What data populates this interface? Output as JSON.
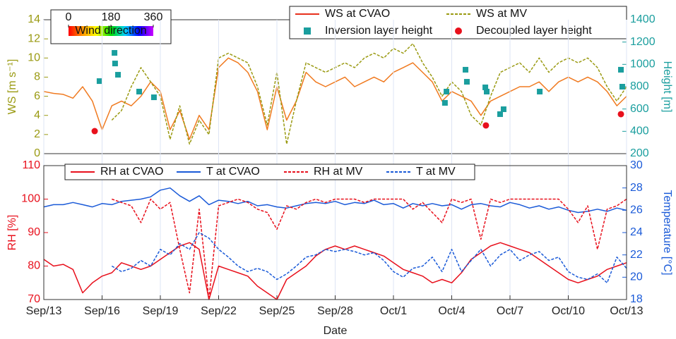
{
  "chart_data": [
    {
      "type": "line",
      "ylabel": "WS [m s⁻¹]",
      "y2label": "Height [m]",
      "ycolor": "#9a9a12",
      "y2color": "#1a9e9e",
      "xlim": [
        0,
        30
      ],
      "ylim": [
        0,
        14
      ],
      "yticks": [
        0,
        2,
        4,
        6,
        8,
        10,
        12,
        14
      ],
      "y2lim": [
        200,
        1400
      ],
      "y2ticks": [
        200,
        400,
        600,
        800,
        1000,
        1200,
        1400
      ],
      "legend": "upper right",
      "colorbar": {
        "label": "Wind direction",
        "lim": [
          0,
          360
        ],
        "ticks": [
          0,
          180,
          360
        ]
      },
      "x": [
        0,
        0.5,
        1,
        1.5,
        2,
        2.5,
        3,
        3.5,
        4,
        4.5,
        5,
        5.5,
        6,
        6.5,
        7,
        7.5,
        8,
        8.5,
        9,
        9.5,
        10,
        10.5,
        11,
        11.5,
        12,
        12.5,
        13,
        13.5,
        14,
        14.5,
        15,
        15.5,
        16,
        16.5,
        17,
        17.5,
        18,
        18.5,
        19,
        19.5,
        20,
        20.5,
        21,
        21.5,
        22,
        22.5,
        23,
        23.5,
        24,
        24.5,
        25,
        25.5,
        26,
        26.5,
        27,
        27.5,
        28,
        28.5,
        29,
        29.5,
        30
      ],
      "series": [
        {
          "name": "WS at CVAO",
          "color": "#e8301c",
          "line_color": "#f07a20",
          "dash": false,
          "values": [
            6.5,
            6.3,
            6.2,
            5.8,
            7.0,
            5.5,
            2.5,
            5.0,
            5.5,
            5.0,
            6.0,
            7.5,
            6.5,
            2.5,
            4.5,
            1.5,
            4.0,
            2.5,
            9.0,
            10.0,
            9.5,
            8.5,
            6.5,
            2.5,
            7.0,
            3.5,
            5.5,
            8.5,
            7.5,
            7.0,
            7.5,
            8.0,
            7.0,
            7.5,
            8.0,
            7.5,
            8.5,
            9.0,
            9.5,
            8.5,
            7.5,
            5.5,
            6.5,
            6.0,
            5.5,
            4.0,
            5.5,
            6.0,
            6.5,
            7.0,
            7.0,
            7.5,
            6.5,
            7.5,
            8.0,
            7.5,
            8.0,
            7.5,
            6.5,
            5.0,
            6.0
          ]
        },
        {
          "name": "WS at MV",
          "color": "#9a9a12",
          "dash": true,
          "values": [
            null,
            null,
            null,
            null,
            null,
            null,
            null,
            3.5,
            4.5,
            7.0,
            9.0,
            7.5,
            6.0,
            1.5,
            5.0,
            1.0,
            3.5,
            2.0,
            10.0,
            10.5,
            10.0,
            9.5,
            7.0,
            3.0,
            8.5,
            1.0,
            5.5,
            9.5,
            9.0,
            8.5,
            9.0,
            9.5,
            9.0,
            10.0,
            10.5,
            10.0,
            11.0,
            10.5,
            11.5,
            9.5,
            8.0,
            6.0,
            7.5,
            6.5,
            4.0,
            3.0,
            6.0,
            8.5,
            9.0,
            9.5,
            8.5,
            10.0,
            8.5,
            9.5,
            10.0,
            9.5,
            10.0,
            9.0,
            7.0,
            5.5,
            7.0
          ]
        },
        {
          "name": "Inversion layer height",
          "type": "scatter",
          "marker": "square",
          "color": "#1a9e9e",
          "axis": "y2",
          "x": [
            2.87,
            3.64,
            3.67,
            3.82,
            4.91,
            5.67,
            20.65,
            20.73,
            21.71,
            21.78,
            22.73,
            22.8,
            23.49,
            23.67,
            25.53,
            29.71,
            29.78
          ],
          "values": [
            850,
            1103,
            1008,
            907,
            756,
            705,
            655,
            756,
            952,
            844,
            794,
            756,
            554,
            598,
            756,
            952,
            800
          ]
        },
        {
          "name": "Decoupled layer height",
          "type": "scatter",
          "marker": "circle",
          "color": "#e8101c",
          "axis": "y2",
          "x": [
            2.62,
            22.76,
            29.71
          ],
          "values": [
            402,
            453,
            554
          ]
        }
      ]
    },
    {
      "type": "line",
      "ylabel": "RH [%]",
      "y2label": "Temperature [°C]",
      "xlabel": "Date",
      "ycolor": "#e8101c",
      "y2color": "#1a5ad8",
      "xlim": [
        0,
        30
      ],
      "xticks": [
        {
          "value": 0,
          "label": "Sep/13"
        },
        {
          "value": 3,
          "label": "Sep/16"
        },
        {
          "value": 6,
          "label": "Sep/19"
        },
        {
          "value": 9,
          "label": "Sep/22"
        },
        {
          "value": 12,
          "label": "Sep/25"
        },
        {
          "value": 15,
          "label": "Sep/28"
        },
        {
          "value": 18,
          "label": "Oct/1"
        },
        {
          "value": 21,
          "label": "Oct/4"
        },
        {
          "value": 24,
          "label": "Oct/7"
        },
        {
          "value": 27,
          "label": "Oct/10"
        },
        {
          "value": 30,
          "label": "Oct/13"
        }
      ],
      "ylim": [
        70,
        110
      ],
      "yticks": [
        70,
        80,
        90,
        100,
        110
      ],
      "y2lim": [
        18,
        30
      ],
      "y2ticks": [
        18,
        20,
        22,
        24,
        26,
        28,
        30
      ],
      "grid": true,
      "legend": "upper left",
      "x": [
        0,
        0.5,
        1,
        1.5,
        2,
        2.5,
        3,
        3.5,
        4,
        4.5,
        5,
        5.5,
        6,
        6.5,
        7,
        7.5,
        8,
        8.5,
        9,
        9.5,
        10,
        10.5,
        11,
        11.5,
        12,
        12.5,
        13,
        13.5,
        14,
        14.5,
        15,
        15.5,
        16,
        16.5,
        17,
        17.5,
        18,
        18.5,
        19,
        19.5,
        20,
        20.5,
        21,
        21.5,
        22,
        22.5,
        23,
        23.5,
        24,
        24.5,
        25,
        25.5,
        26,
        26.5,
        27,
        27.5,
        28,
        28.5,
        29,
        29.5,
        30
      ],
      "series": [
        {
          "name": "RH at CVAO",
          "color": "#e8101c",
          "dash": false,
          "values": [
            82,
            80,
            80.5,
            79,
            72,
            75,
            77,
            78,
            81,
            80,
            79,
            80,
            82,
            84,
            86,
            87,
            85,
            70,
            80,
            79,
            78,
            77,
            74,
            72,
            70,
            76,
            78,
            80,
            83,
            85,
            86,
            85,
            86,
            85,
            84,
            83,
            81,
            79,
            78,
            77,
            75,
            76,
            75,
            78,
            82,
            84,
            86,
            87,
            86,
            85,
            84,
            82,
            80,
            78,
            76,
            75,
            76,
            77,
            79,
            80,
            81
          ]
        },
        {
          "name": "T at CVAO",
          "color": "#1a5ad8",
          "dash": false,
          "axis": "y2",
          "values": [
            26.3,
            26.5,
            26.5,
            26.7,
            26.5,
            26.3,
            26.6,
            26.5,
            26.8,
            26.9,
            27.0,
            27.2,
            27.8,
            28.0,
            27.3,
            26.8,
            27.3,
            26.5,
            26.9,
            26.8,
            26.6,
            26.8,
            26.4,
            26.5,
            26.3,
            26.2,
            26.4,
            26.6,
            26.7,
            26.6,
            26.8,
            26.5,
            26.7,
            26.6,
            26.9,
            26.5,
            26.6,
            26.2,
            26.6,
            26.4,
            26.6,
            26.4,
            26.5,
            26.1,
            26.5,
            26.6,
            26.4,
            26.3,
            26.7,
            26.5,
            26.2,
            26.4,
            26.1,
            26.3,
            26.0,
            25.8,
            25.9,
            26.1,
            25.9,
            26.2,
            26.0
          ]
        },
        {
          "name": "RH at MV",
          "color": "#e8101c",
          "dash": true,
          "values": [
            null,
            null,
            null,
            null,
            null,
            null,
            null,
            100,
            99,
            98,
            93,
            100,
            97,
            99,
            85,
            72,
            97,
            70,
            98,
            99,
            100,
            99,
            97,
            96,
            91,
            98,
            97,
            99,
            100,
            99,
            100,
            100,
            100,
            99,
            100,
            100,
            100,
            100,
            97,
            99,
            96,
            93,
            100,
            99,
            100,
            88,
            100,
            99,
            100,
            100,
            100,
            100,
            100,
            100,
            97,
            93,
            98,
            85,
            97,
            98,
            100
          ]
        },
        {
          "name": "T at MV",
          "color": "#1a5ad8",
          "dash": true,
          "axis": "y2",
          "values": [
            null,
            null,
            null,
            null,
            null,
            null,
            null,
            21,
            20.5,
            20.8,
            21.5,
            21.0,
            22.5,
            22.0,
            23.0,
            22.5,
            24.0,
            23.5,
            22.5,
            21.8,
            21.0,
            20.5,
            20.8,
            20.5,
            19.8,
            20.3,
            21.0,
            21.8,
            22.0,
            22.5,
            22.3,
            22.5,
            22.3,
            22.0,
            22.2,
            21.5,
            20.5,
            20.0,
            20.8,
            21.0,
            21.8,
            20.5,
            22.5,
            20.5,
            21.5,
            22.5,
            21.0,
            22.0,
            22.5,
            21.5,
            22.0,
            22.3,
            21.5,
            21.8,
            20.5,
            20.0,
            19.8,
            20.3,
            19.5,
            21.8,
            20.8
          ]
        }
      ]
    }
  ]
}
